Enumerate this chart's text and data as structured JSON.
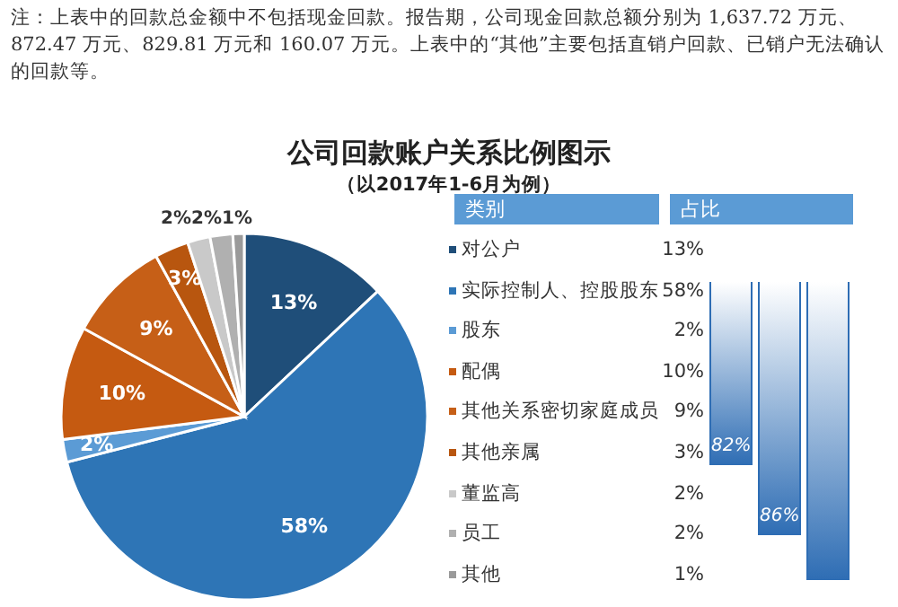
{
  "chart_data": {
    "type": "pie",
    "title": "公司回款账户关系比例图示",
    "subtitle": "（以2017年1-6月为例）",
    "annotations": [
      "注：上表中的回款总金额中不包括现金回款。报告期，公司现金回款总额分别为 1,637.72 万元、872.47 万元、829.81 万元和 160.07 万元。上表中的“其他”主要包括直销户回款、已销户无法确认的回款等。",
      "占比",
      "82%",
      "86%"
    ],
    "legend_title": "类别",
    "legend": "right",
    "categories": [
      "对公户",
      "实际控制人、控股股东",
      "股东",
      "配偶",
      "其他关系密切家庭成员",
      "其他亲属",
      "董监高",
      "员工",
      "其他"
    ],
    "values": [
      13,
      58,
      2,
      10,
      9,
      3,
      2,
      2,
      1
    ],
    "value_labels": [
      "13%",
      "58%",
      "2%",
      "10%",
      "9%",
      "3%",
      "2%",
      "2%",
      "1%"
    ],
    "colors": [
      "#1f4e79",
      "#2e75b6",
      "#5b9bd5",
      "#c55a11",
      "#c65f17",
      "#b8560f",
      "#c9c9c9",
      "#b0b0b0",
      "#9a9a9a"
    ]
  }
}
